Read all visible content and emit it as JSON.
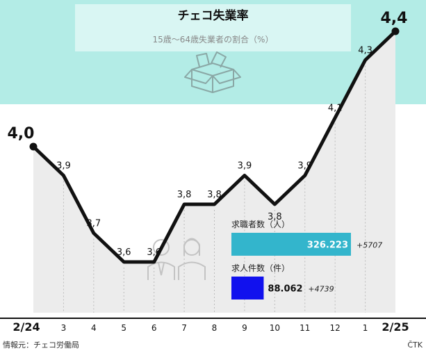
{
  "chart_data": {
    "type": "line",
    "title": "チェコ失業率",
    "subtitle": "15歳〜64歳失業者の割合（%）",
    "x": [
      "2/24",
      "3",
      "4",
      "5",
      "6",
      "7",
      "8",
      "9",
      "10",
      "11",
      "12",
      "1",
      "2/25"
    ],
    "values": [
      4.0,
      3.9,
      3.7,
      3.6,
      3.6,
      3.8,
      3.8,
      3.9,
      3.8,
      3.9,
      4.1,
      4.3,
      4.4
    ],
    "value_labels": [
      "4,0",
      "3,9",
      "3,7",
      "3,6",
      "3,6",
      "3,8",
      "3,8",
      "3,9",
      "3,8",
      "3,9",
      "4,1",
      "4,3",
      "4,4"
    ],
    "ylim": [
      3.15,
      4.6
    ],
    "grid": true,
    "inset_bars": [
      {
        "label": "求職者数（人）",
        "value": 326223,
        "value_text": "326.223",
        "change": "+5707",
        "color": "#33b5cc"
      },
      {
        "label": "求人件数（件）",
        "value": 88062,
        "value_text": "88.062",
        "change": "+4739",
        "color": "#1111ee"
      }
    ]
  },
  "source": "情報元：チェコ労働局",
  "agency": "ČTK",
  "colors": {
    "top_band": "#b3ece6",
    "plot_bg": "#ececec",
    "line": "#111111",
    "grid": "#bbbbbb"
  }
}
